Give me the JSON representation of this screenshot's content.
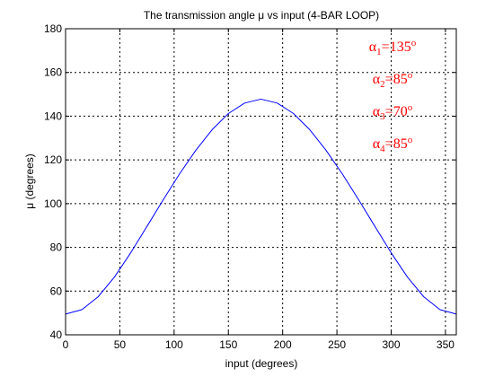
{
  "chart_data": {
    "type": "line",
    "title": "The transmission angle μ vs input  (4-BAR LOOP)",
    "xlabel": "input (degrees)",
    "ylabel": "μ (degrees)",
    "xlim": [
      0,
      360
    ],
    "ylim": [
      40,
      180
    ],
    "xticks": [
      0,
      50,
      100,
      150,
      200,
      250,
      300,
      350
    ],
    "yticks": [
      40,
      60,
      80,
      100,
      120,
      140,
      160,
      180
    ],
    "grid": true,
    "series_color": "#0000ff",
    "annotation_color": "#ff0000",
    "series": [
      {
        "x": [
          0,
          15,
          30,
          45,
          60,
          75,
          90,
          105,
          120,
          135,
          150,
          165,
          180,
          195,
          210,
          225,
          240,
          255,
          270,
          285,
          300,
          315,
          330,
          345,
          360
        ],
        "values": [
          49.5,
          51.5,
          57.4,
          66.4,
          77.5,
          89.6,
          101.8,
          113.6,
          124.4,
          133.8,
          141.2,
          146.0,
          147.8,
          146.0,
          141.2,
          133.8,
          124.4,
          113.6,
          101.8,
          89.6,
          77.5,
          66.4,
          57.4,
          51.5,
          49.5
        ]
      }
    ],
    "annotations": [
      {
        "base": "α",
        "sub": "1",
        "rest": "=135",
        "sup": "o"
      },
      {
        "base": "α",
        "sub": "2",
        "rest": "=85",
        "sup": "o"
      },
      {
        "base": "α",
        "sub": "3",
        "rest": "=70",
        "sup": "o"
      },
      {
        "base": "α",
        "sub": "4",
        "rest": "=85",
        "sup": "o"
      }
    ]
  }
}
